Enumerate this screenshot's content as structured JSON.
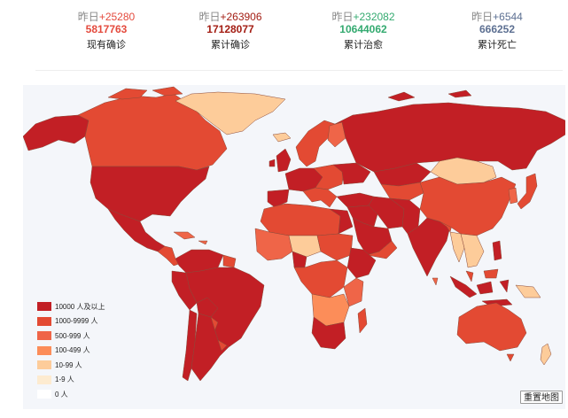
{
  "stats": [
    {
      "yesterday_label": "昨日",
      "delta": "+25280",
      "value": "5817763",
      "label": "现有确诊",
      "color": "#e44a3d",
      "delta_color": "#e44a3d"
    },
    {
      "yesterday_label": "昨日",
      "delta": "+263906",
      "value": "17128077",
      "label": "累计确诊",
      "color": "#a31d13",
      "delta_color": "#a31d13"
    },
    {
      "yesterday_label": "昨日",
      "delta": "+232082",
      "value": "10644062",
      "label": "累计治愈",
      "color": "#34aa70",
      "delta_color": "#34aa70"
    },
    {
      "yesterday_label": "昨日",
      "delta": "+6544",
      "value": "666252",
      "label": "累计死亡",
      "color": "#5d7092",
      "delta_color": "#5d7092"
    }
  ],
  "legend": [
    {
      "label": "10000 人及以上",
      "color": "#c21f25"
    },
    {
      "label": "1000-9999 人",
      "color": "#e34a33"
    },
    {
      "label": "500-999 人",
      "color": "#ef6548"
    },
    {
      "label": "100-499 人",
      "color": "#fc8d59"
    },
    {
      "label": "10-99 人",
      "color": "#fdcc9a"
    },
    {
      "label": "1-9 人",
      "color": "#fdebd0"
    },
    {
      "label": "0 人",
      "color": "#ffffff"
    }
  ],
  "map": {
    "background": "#f4f6fa",
    "regions": [
      {
        "name": "Greenland",
        "level": "10-99 人",
        "color": "#fdcc9a"
      },
      {
        "name": "Canada",
        "level": "1000-9999 人",
        "color": "#e34a33"
      },
      {
        "name": "United States",
        "level": "10000 人及以上",
        "color": "#c21f25"
      },
      {
        "name": "Mexico",
        "level": "10000 人及以上",
        "color": "#c21f25"
      },
      {
        "name": "Brazil",
        "level": "10000 人及以上",
        "color": "#c21f25"
      },
      {
        "name": "Russia",
        "level": "10000 人及以上",
        "color": "#c21f25"
      },
      {
        "name": "China",
        "level": "1000-9999 人",
        "color": "#e34a33"
      },
      {
        "name": "Mongolia",
        "level": "10-99 人",
        "color": "#fdcc9a"
      },
      {
        "name": "India",
        "level": "10000 人及以上",
        "color": "#c21f25"
      },
      {
        "name": "Australia",
        "level": "1000-9999 人",
        "color": "#e34a33"
      },
      {
        "name": "South Africa",
        "level": "10000 人及以上",
        "color": "#c21f25"
      }
    ]
  },
  "reset_button": {
    "label": "重置地图"
  }
}
